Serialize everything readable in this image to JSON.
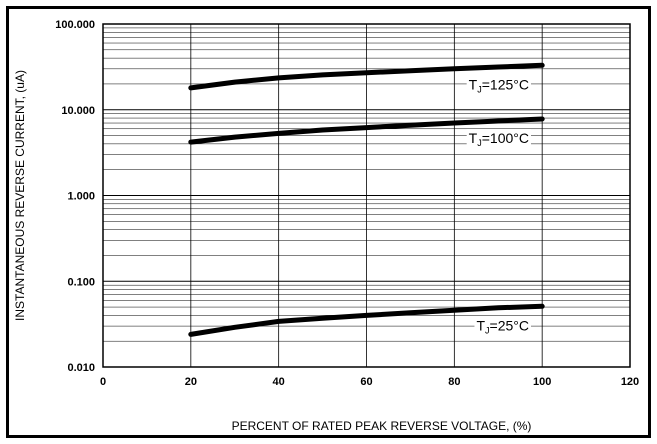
{
  "chart_data": {
    "type": "line",
    "title": "",
    "xlabel": "PERCENT OF RATED PEAK REVERSE VOLTAGE, (%)",
    "ylabel": "INSTANTANEOUS REVERSE CURRENT, (uA)",
    "x_scale": "linear",
    "y_scale": "log",
    "xlim": [
      0,
      120
    ],
    "ylim": [
      0.01,
      100
    ],
    "grid": true,
    "x_ticks": [
      "0",
      "20",
      "40",
      "60",
      "80",
      "100",
      "120"
    ],
    "x_tick_values": [
      0,
      20,
      40,
      60,
      80,
      100,
      120
    ],
    "y_ticks": [
      "0.010",
      "0.100",
      "1.000",
      "10.000",
      "100.000"
    ],
    "y_tick_values": [
      0.01,
      0.1,
      1,
      10,
      100
    ],
    "series": [
      {
        "name": "TJ=125°C",
        "label_main": "T",
        "label_sub": "J",
        "label_rest": "=125°C",
        "x": [
          20,
          30,
          40,
          50,
          60,
          70,
          80,
          90,
          100
        ],
        "y": [
          18,
          21,
          23.5,
          25.5,
          27,
          28.5,
          30,
          31.5,
          33
        ]
      },
      {
        "name": "TJ=100°C",
        "label_main": "T",
        "label_sub": "J",
        "label_rest": "=100°C",
        "x": [
          20,
          30,
          40,
          50,
          60,
          70,
          80,
          90,
          100
        ],
        "y": [
          4.2,
          4.8,
          5.3,
          5.8,
          6.2,
          6.6,
          7.0,
          7.4,
          7.8
        ]
      },
      {
        "name": "TJ=25°C",
        "label_main": "T",
        "label_sub": "J",
        "label_rest": "=25°C",
        "x": [
          20,
          30,
          40,
          50,
          60,
          70,
          80,
          90,
          100
        ],
        "y": [
          0.024,
          0.029,
          0.034,
          0.037,
          0.04,
          0.043,
          0.046,
          0.049,
          0.051
        ]
      }
    ],
    "line_color": "#000000"
  }
}
